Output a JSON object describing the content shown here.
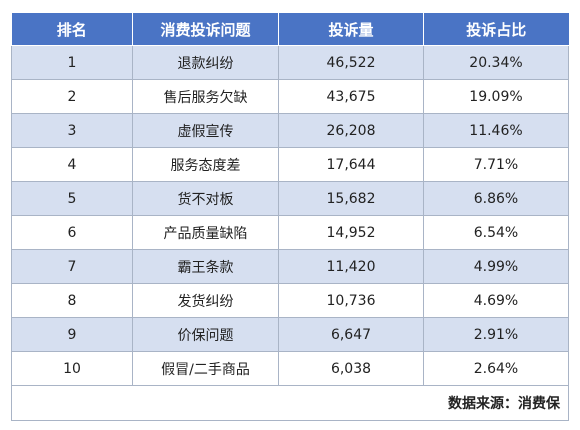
{
  "table": {
    "headers": [
      "排名",
      "消费投诉问题",
      "投诉量",
      "投诉占比"
    ],
    "rows": [
      [
        "1",
        "退款纠纷",
        "46,522",
        "20.34%"
      ],
      [
        "2",
        "售后服务欠缺",
        "43,675",
        "19.09%"
      ],
      [
        "3",
        "虚假宣传",
        "26,208",
        "11.46%"
      ],
      [
        "4",
        "服务态度差",
        "17,644",
        "7.71%"
      ],
      [
        "5",
        "货不对板",
        "15,682",
        "6.86%"
      ],
      [
        "6",
        "产品质量缺陷",
        "14,952",
        "6.54%"
      ],
      [
        "7",
        "霸王条款",
        "11,420",
        "4.99%"
      ],
      [
        "8",
        "发货纠纷",
        "10,736",
        "4.69%"
      ],
      [
        "9",
        "价保问题",
        "6,647",
        "2.91%"
      ],
      [
        "10",
        "假冒/二手商品",
        "6,038",
        "2.64%"
      ]
    ],
    "footer": "数据来源：消费保"
  },
  "colors": {
    "header_bg": "#4a74c5",
    "stripe_bg": "#d6dff0",
    "border": "#a9b4c6"
  }
}
